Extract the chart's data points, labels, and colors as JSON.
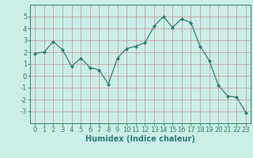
{
  "x": [
    0,
    1,
    2,
    3,
    4,
    5,
    6,
    7,
    8,
    9,
    10,
    11,
    12,
    13,
    14,
    15,
    16,
    17,
    18,
    19,
    20,
    21,
    22,
    23
  ],
  "y": [
    1.9,
    2.0,
    2.9,
    2.2,
    0.8,
    1.5,
    0.7,
    0.5,
    -0.7,
    1.5,
    2.3,
    2.5,
    2.8,
    4.2,
    5.0,
    4.1,
    4.8,
    4.5,
    2.5,
    1.3,
    -0.8,
    -1.7,
    -1.8,
    -3.1
  ],
  "line_color": "#2e7d6e",
  "marker": "D",
  "marker_size": 2,
  "bg_color": "#cceee8",
  "grid_color": "#c09090",
  "xlabel": "Humidex (Indice chaleur)",
  "xlim": [
    -0.5,
    23.5
  ],
  "ylim": [
    -4,
    6
  ],
  "yticks": [
    -3,
    -2,
    -1,
    0,
    1,
    2,
    3,
    4,
    5
  ],
  "xticks": [
    0,
    1,
    2,
    3,
    4,
    5,
    6,
    7,
    8,
    9,
    10,
    11,
    12,
    13,
    14,
    15,
    16,
    17,
    18,
    19,
    20,
    21,
    22,
    23
  ],
  "axis_color": "#2e7d6e",
  "tick_label_fontsize": 6,
  "xlabel_fontsize": 7
}
